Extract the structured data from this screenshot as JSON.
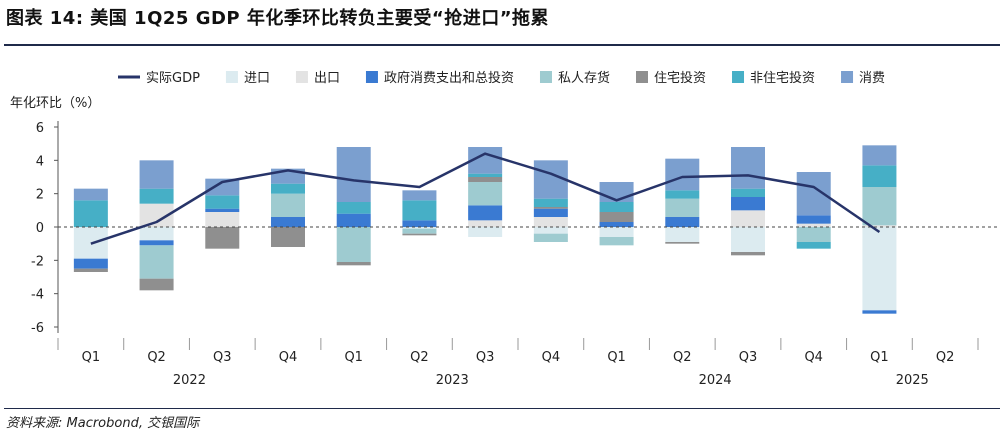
{
  "title": "图表 14: 美国 1Q25 GDP 年化季环比转负主要受“抢进口”拖累",
  "source": "资料来源: Macrobond, 交银国际",
  "chart_data": {
    "type": "bar",
    "subtype": "stacked bar with line",
    "ylabel": "年化环比（%）",
    "ylim": [
      -6,
      6
    ],
    "yticks": [
      6,
      4,
      2,
      0,
      -2,
      -4,
      -6
    ],
    "grid": false,
    "legend_position": "top",
    "categories": [
      "Q1",
      "Q2",
      "Q3",
      "Q4",
      "Q1",
      "Q2",
      "Q3",
      "Q4",
      "Q1",
      "Q2",
      "Q3",
      "Q4",
      "Q1",
      "Q2"
    ],
    "years": [
      {
        "label": "2022",
        "start": 0,
        "end": 3
      },
      {
        "label": "2023",
        "start": 4,
        "end": 7
      },
      {
        "label": "2024",
        "start": 8,
        "end": 11
      },
      {
        "label": "2025",
        "start": 12,
        "end": 13
      }
    ],
    "series": [
      {
        "name": "进口",
        "kind": "bar",
        "color": "#dcebf0",
        "values": [
          -1.9,
          -0.8,
          0.0,
          0.0,
          0.0,
          -0.1,
          -0.6,
          -0.4,
          -0.6,
          -0.9,
          -1.5,
          0.0,
          -5.0,
          null
        ]
      },
      {
        "name": "出口",
        "kind": "bar",
        "color": "#e3e3e3",
        "values": [
          0.0,
          1.4,
          0.9,
          0.0,
          0.0,
          0.0,
          0.4,
          0.6,
          0.0,
          0.0,
          1.0,
          0.2,
          0.1,
          null
        ]
      },
      {
        "name": "政府消费支出和总投资",
        "kind": "bar",
        "color": "#3a7ad2",
        "values": [
          -0.6,
          -0.3,
          0.2,
          0.6,
          0.8,
          0.4,
          0.9,
          0.5,
          0.3,
          0.6,
          0.8,
          0.5,
          -0.2,
          null
        ]
      },
      {
        "name": "私人存货",
        "kind": "bar",
        "color": "#9ecbd0",
        "values": [
          0.0,
          -2.0,
          0.0,
          1.4,
          -2.1,
          -0.3,
          1.4,
          -0.5,
          -0.5,
          1.1,
          0.0,
          -0.9,
          2.3,
          null
        ]
      },
      {
        "name": "住宅投资",
        "kind": "bar",
        "color": "#8f8f8f",
        "values": [
          -0.2,
          -0.7,
          -1.3,
          -1.2,
          -0.2,
          -0.1,
          0.3,
          0.1,
          0.6,
          -0.1,
          -0.2,
          0.0,
          0.0,
          null
        ]
      },
      {
        "name": "非住宅投资",
        "kind": "bar",
        "color": "#46afc6",
        "values": [
          1.6,
          0.9,
          0.8,
          0.6,
          0.7,
          1.2,
          0.2,
          0.5,
          0.6,
          0.5,
          0.5,
          -0.4,
          1.3,
          null
        ]
      },
      {
        "name": "消费",
        "kind": "bar",
        "color": "#7b9fcf",
        "values": [
          0.7,
          1.7,
          1.0,
          0.9,
          3.3,
          0.6,
          1.6,
          2.3,
          1.2,
          1.9,
          2.5,
          2.6,
          1.2,
          null
        ]
      },
      {
        "name": "实际GDP",
        "kind": "line",
        "color": "#273469",
        "values": [
          -1.0,
          0.3,
          2.7,
          3.4,
          2.8,
          2.4,
          4.4,
          3.2,
          1.6,
          3.0,
          3.1,
          2.4,
          -0.3,
          null
        ]
      }
    ]
  }
}
